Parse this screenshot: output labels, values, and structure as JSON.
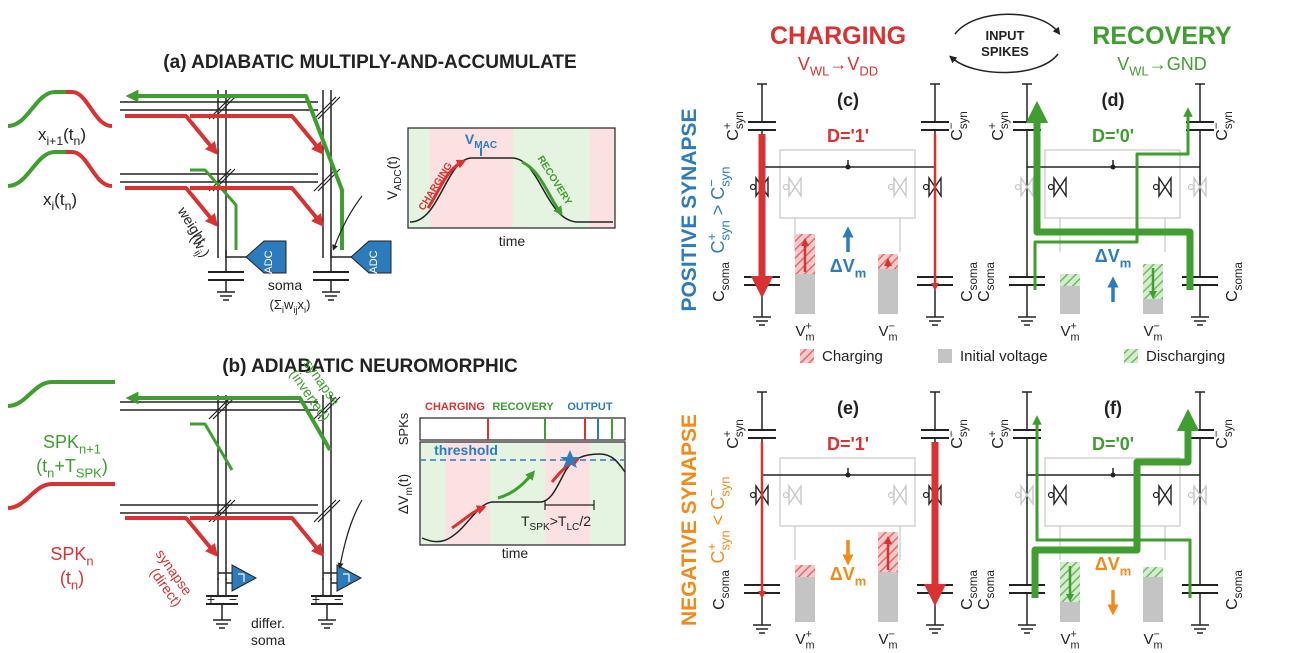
{
  "panel_a": {
    "title": "(a) ADIABATIC MULTIPLY-AND-ACCUMULATE",
    "input_top": [
      {
        "t": "x"
      },
      {
        "sub": "i+1"
      },
      {
        "t": "(t"
      },
      {
        "sub": "n"
      },
      {
        "t": ")"
      }
    ],
    "input_bottom": [
      {
        "t": "x"
      },
      {
        "sub": "i"
      },
      {
        "t": "(t"
      },
      {
        "sub": "n"
      },
      {
        "t": ")"
      }
    ],
    "weight": "weight",
    "weight_symbol": [
      {
        "t": "(w"
      },
      {
        "sub": "ij"
      },
      {
        "t": ")"
      }
    ],
    "adc": "ADC",
    "soma": "soma",
    "soma_sum": [
      {
        "t": "(Σ"
      },
      {
        "sub": "i"
      },
      {
        "t": "w"
      },
      {
        "sub": "ij"
      },
      {
        "t": "x"
      },
      {
        "sub": "i"
      },
      {
        "t": ")"
      }
    ],
    "inset": {
      "y_label": [
        {
          "t": "V"
        },
        {
          "sub": "ADC"
        },
        {
          "t": "(t)"
        }
      ],
      "x_label": "time",
      "peak": [
        {
          "t": "V"
        },
        {
          "sub": "MAC"
        }
      ],
      "rise": "CHARGING",
      "fall": "RECOVERY"
    }
  },
  "panel_b": {
    "title": "(b) ADIABATIC NEUROMORPHIC",
    "input_top": [
      {
        "t": "SPK"
      },
      {
        "sub": "n+1"
      }
    ],
    "input_top_time": [
      {
        "t": "(t"
      },
      {
        "sub": "n"
      },
      {
        "t": "+T"
      },
      {
        "sub": "SPK"
      },
      {
        "t": ")"
      }
    ],
    "input_bottom": [
      {
        "t": "SPK"
      },
      {
        "sub": "n"
      }
    ],
    "input_bottom_time": [
      {
        "t": "(t"
      },
      {
        "sub": "n"
      },
      {
        "t": ")"
      }
    ],
    "synapse_direct": [
      "synapse",
      "(direct)"
    ],
    "synapse_inverted": [
      "synapse",
      "(inverted)"
    ],
    "soma": [
      "differ.",
      "soma"
    ],
    "plus": "+",
    "minus": "−",
    "inset": {
      "spikes_label": "SPKs",
      "phases": [
        "CHARGING",
        "RECOVERY",
        "OUTPUT"
      ],
      "threshold": "threshold",
      "y_label": [
        {
          "t": "ΔV"
        },
        {
          "sub": "m"
        },
        {
          "t": "(t)"
        }
      ],
      "interval": [
        {
          "t": "T"
        },
        {
          "sub": "SPK"
        },
        {
          "t": ">T"
        },
        {
          "sub": "LC"
        },
        {
          "t": "/2"
        }
      ],
      "x_label": "time"
    }
  },
  "phases": {
    "charging": "CHARGING",
    "charging_rule": [
      {
        "t": "V"
      },
      {
        "sub": "WL"
      },
      {
        "t": "→V"
      },
      {
        "sub": "DD"
      }
    ],
    "input_spikes": [
      "INPUT",
      "SPIKES"
    ],
    "recovery": "RECOVERY",
    "recovery_rule": [
      {
        "t": "V"
      },
      {
        "sub": "WL"
      },
      {
        "t": "→GND"
      }
    ]
  },
  "rows": [
    {
      "name": "POSITIVE SYNAPSE",
      "condition": [
        {
          "t": "C"
        },
        {
          "sup": "+"
        },
        {
          "sub": "syn"
        },
        {
          "t": " > C"
        },
        {
          "sup": "−"
        },
        {
          "sub": "syn"
        }
      ]
    },
    {
      "name": "NEGATIVE SYNAPSE",
      "condition": [
        {
          "t": "C"
        },
        {
          "sup": "+"
        },
        {
          "sub": "syn"
        },
        {
          "t": " < C"
        },
        {
          "sup": "−"
        },
        {
          "sub": "syn"
        }
      ]
    }
  ],
  "circuit_labels": {
    "c_syn_plus": [
      {
        "t": "C"
      },
      {
        "sup": "+"
      },
      {
        "sub": "syn"
      }
    ],
    "c_syn_minus": [
      {
        "t": "C"
      },
      {
        "sup": "−"
      },
      {
        "sub": "syn"
      }
    ],
    "c_soma": [
      {
        "t": "C"
      },
      {
        "sub": "soma"
      }
    ],
    "v_plus": [
      {
        "t": "V"
      },
      {
        "sup": "+"
      },
      {
        "sub": "m"
      }
    ],
    "v_minus": [
      {
        "t": "V"
      },
      {
        "sup": "−"
      },
      {
        "sub": "m"
      }
    ],
    "delta_v": [
      {
        "t": "ΔV"
      },
      {
        "sub": "m"
      }
    ]
  },
  "panels": [
    {
      "tag": "(c)",
      "state": "D='1'"
    },
    {
      "tag": "(d)",
      "state": "D='0'"
    },
    {
      "tag": "(e)",
      "state": "D='1'"
    },
    {
      "tag": "(f)",
      "state": "D='0'"
    }
  ],
  "legend": [
    "Charging",
    "Initial voltage",
    "Discharging"
  ]
}
